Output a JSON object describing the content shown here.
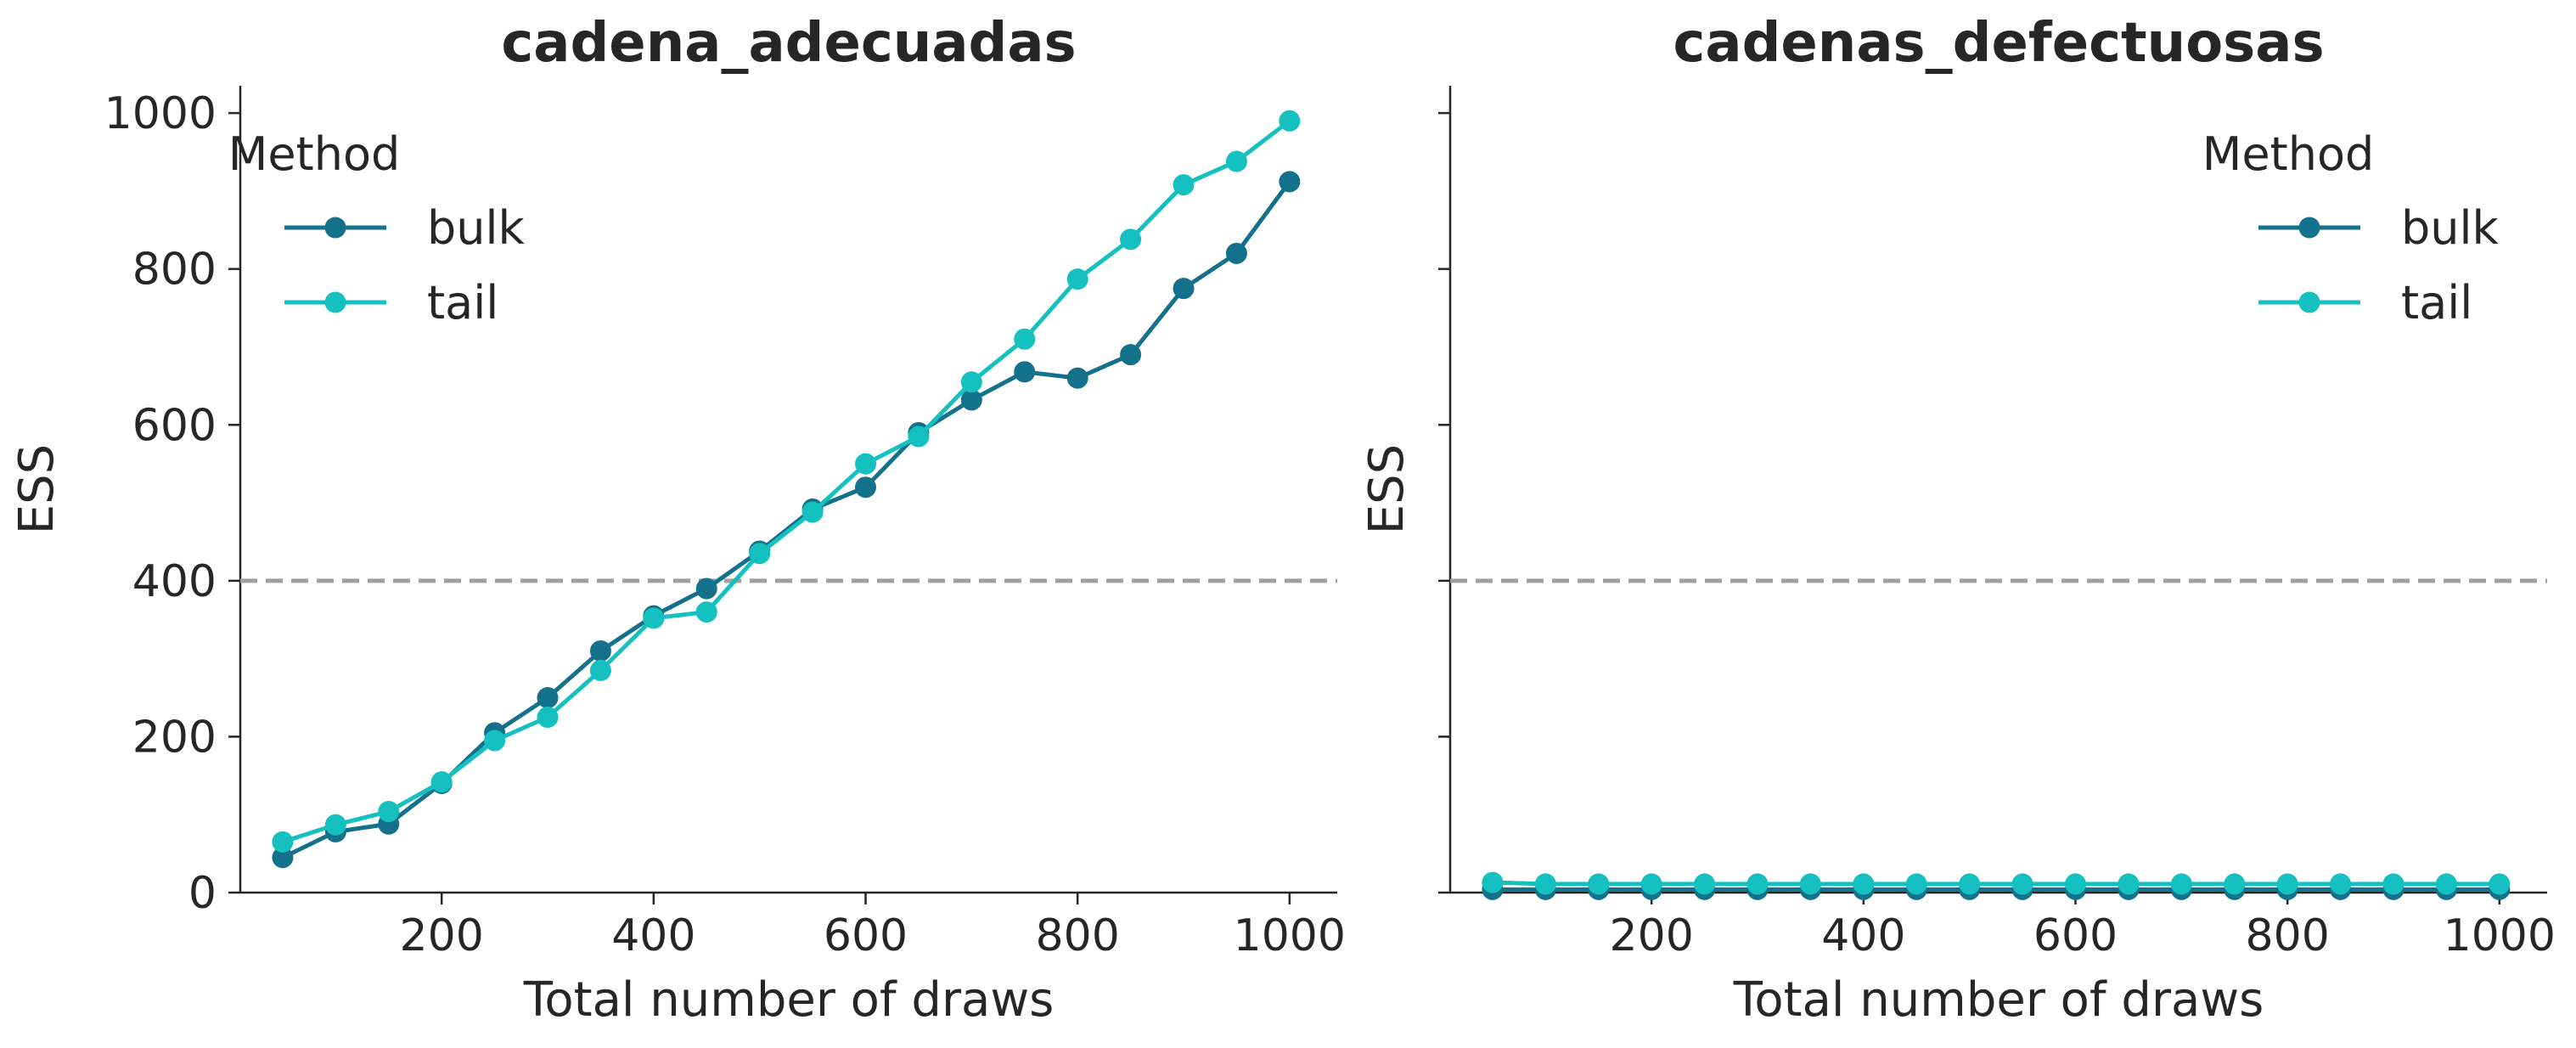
{
  "chart_data": [
    {
      "type": "line",
      "title": "cadena_adecuadas",
      "xlabel": "Total number of draws",
      "ylabel": "ESS",
      "xlim": [
        10,
        1045
      ],
      "ylim": [
        0,
        1035
      ],
      "xticks": [
        200,
        400,
        600,
        800,
        1000
      ],
      "yticks": [
        0,
        200,
        400,
        600,
        800,
        1000
      ],
      "reference_line": {
        "y": 400,
        "style": "dashed",
        "color": "#a0a0a0"
      },
      "legend": {
        "title": "Method",
        "placement": "top-left"
      },
      "x": [
        50,
        100,
        150,
        200,
        250,
        300,
        350,
        400,
        450,
        500,
        550,
        600,
        650,
        700,
        750,
        800,
        850,
        900,
        950,
        1000
      ],
      "series": [
        {
          "name": "bulk",
          "color": "#13718b",
          "values": [
            45,
            78,
            88,
            140,
            205,
            250,
            310,
            355,
            390,
            438,
            492,
            520,
            590,
            632,
            668,
            660,
            690,
            775,
            820,
            912
          ]
        },
        {
          "name": "tail",
          "color": "#14c0c0",
          "values": [
            65,
            87,
            104,
            142,
            195,
            225,
            285,
            352,
            360,
            435,
            488,
            550,
            585,
            655,
            710,
            787,
            838,
            908,
            938,
            990
          ]
        }
      ]
    },
    {
      "type": "line",
      "title": "cadenas_defectuosas",
      "xlabel": "Total number of draws",
      "ylabel": "ESS",
      "xlim": [
        10,
        1045
      ],
      "ylim": [
        0,
        1035
      ],
      "xticks": [
        200,
        400,
        600,
        800,
        1000
      ],
      "yticks": [
        0,
        200,
        400,
        600,
        800,
        1000
      ],
      "reference_line": {
        "y": 400,
        "style": "dashed",
        "color": "#a0a0a0"
      },
      "legend": {
        "title": "Method",
        "placement": "top-right"
      },
      "x": [
        50,
        100,
        150,
        200,
        250,
        300,
        350,
        400,
        450,
        500,
        550,
        600,
        650,
        700,
        750,
        800,
        850,
        900,
        950,
        1000
      ],
      "series": [
        {
          "name": "bulk",
          "color": "#13718b",
          "values": [
            4,
            4,
            4,
            4,
            4,
            4,
            4,
            4,
            4,
            4,
            4,
            4,
            4,
            4,
            4,
            4,
            4,
            4,
            4,
            4
          ]
        },
        {
          "name": "tail",
          "color": "#14c0c0",
          "values": [
            13,
            11,
            11,
            11,
            11,
            11,
            11,
            11,
            11,
            11,
            11,
            11,
            11,
            11,
            11,
            11,
            11,
            11,
            11,
            11
          ]
        }
      ]
    }
  ]
}
